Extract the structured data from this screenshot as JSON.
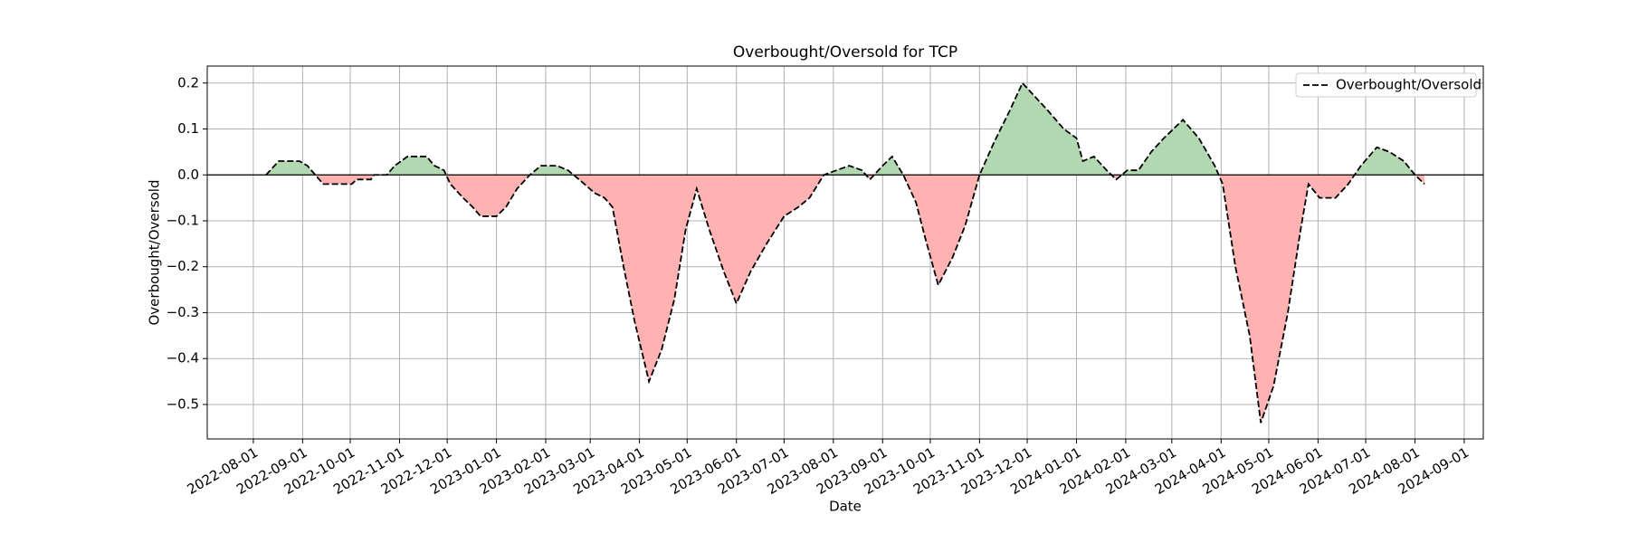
{
  "chart_data": {
    "type": "line",
    "title": "Overbought/Oversold for TCP",
    "xlabel": "Date",
    "ylabel": "Overbought/Oversold",
    "x": [
      "2022-08-09",
      "2022-08-17",
      "2022-08-30",
      "2022-09-04",
      "2022-09-09",
      "2022-09-14",
      "2022-10-02",
      "2022-10-05",
      "2022-10-14",
      "2022-10-16",
      "2022-10-24",
      "2022-10-29",
      "2022-11-06",
      "2022-11-18",
      "2022-11-23",
      "2022-11-29",
      "2022-12-03",
      "2022-12-11",
      "2022-12-17",
      "2022-12-22",
      "2023-01-01",
      "2023-01-07",
      "2023-01-14",
      "2023-01-22",
      "2023-01-29",
      "2023-02-08",
      "2023-02-15",
      "2023-02-22",
      "2023-03-04",
      "2023-03-10",
      "2023-03-15",
      "2023-03-22",
      "2023-03-29",
      "2023-04-07",
      "2023-04-15",
      "2023-04-23",
      "2023-04-30",
      "2023-05-07",
      "2023-05-15",
      "2023-05-24",
      "2023-06-01",
      "2023-06-10",
      "2023-06-20",
      "2023-07-01",
      "2023-07-10",
      "2023-07-17",
      "2023-07-26",
      "2023-08-03",
      "2023-08-11",
      "2023-08-19",
      "2023-08-24",
      "2023-09-01",
      "2023-09-07",
      "2023-09-14",
      "2023-09-22",
      "2023-09-28",
      "2023-10-06",
      "2023-10-15",
      "2023-10-23",
      "2023-11-01",
      "2023-11-10",
      "2023-11-20",
      "2023-11-28",
      "2023-12-06",
      "2023-12-14",
      "2023-12-24",
      "2024-01-01",
      "2024-01-05",
      "2024-01-12",
      "2024-01-20",
      "2024-01-26",
      "2024-02-02",
      "2024-02-09",
      "2024-02-17",
      "2024-02-25",
      "2024-03-08",
      "2024-03-18",
      "2024-03-28",
      "2024-04-02",
      "2024-04-10",
      "2024-04-19",
      "2024-04-26",
      "2024-05-04",
      "2024-05-13",
      "2024-05-21",
      "2024-05-26",
      "2024-06-02",
      "2024-06-12",
      "2024-06-20",
      "2024-06-28",
      "2024-07-08",
      "2024-07-16",
      "2024-07-25",
      "2024-08-01",
      "2024-08-07"
    ],
    "series": [
      {
        "name": "Overbought/Oversold",
        "color": "#000000",
        "values": [
          0.0,
          0.03,
          0.03,
          0.02,
          0.0,
          -0.02,
          -0.02,
          -0.01,
          -0.01,
          0.0,
          0.0,
          0.02,
          0.04,
          0.04,
          0.02,
          0.01,
          -0.02,
          -0.05,
          -0.07,
          -0.09,
          -0.09,
          -0.07,
          -0.03,
          0.0,
          0.02,
          0.02,
          0.01,
          -0.01,
          -0.04,
          -0.05,
          -0.07,
          -0.2,
          -0.32,
          -0.45,
          -0.38,
          -0.27,
          -0.12,
          -0.03,
          -0.12,
          -0.21,
          -0.28,
          -0.21,
          -0.15,
          -0.09,
          -0.07,
          -0.05,
          0.0,
          0.01,
          0.02,
          0.01,
          -0.01,
          0.02,
          0.04,
          0.0,
          -0.06,
          -0.14,
          -0.24,
          -0.18,
          -0.11,
          0.0,
          0.07,
          0.14,
          0.2,
          0.17,
          0.14,
          0.1,
          0.08,
          0.03,
          0.04,
          0.01,
          -0.01,
          0.01,
          0.01,
          0.05,
          0.08,
          0.12,
          0.08,
          0.02,
          -0.02,
          -0.2,
          -0.35,
          -0.54,
          -0.46,
          -0.3,
          -0.12,
          -0.02,
          -0.05,
          -0.05,
          -0.02,
          0.02,
          0.06,
          0.05,
          0.03,
          0.0,
          -0.02
        ]
      }
    ],
    "positive_fill": "#b2d8b2",
    "negative_fill": "#ffb2b2",
    "xlim": [
      "2022-07-03",
      "2024-09-13"
    ],
    "xticks": [
      "2022-08-01",
      "2022-09-01",
      "2022-10-01",
      "2022-11-01",
      "2022-12-01",
      "2023-01-01",
      "2023-02-01",
      "2023-03-01",
      "2023-04-01",
      "2023-05-01",
      "2023-06-01",
      "2023-07-01",
      "2023-08-01",
      "2023-09-01",
      "2023-10-01",
      "2023-11-01",
      "2023-12-01",
      "2024-01-01",
      "2024-02-01",
      "2024-03-01",
      "2024-04-01",
      "2024-05-01",
      "2024-06-01",
      "2024-07-01",
      "2024-08-01",
      "2024-09-01"
    ],
    "ylim": [
      -0.575,
      0.237
    ],
    "yticks": [
      {
        "value": -0.5,
        "label": "−0.5"
      },
      {
        "value": -0.4,
        "label": "−0.4"
      },
      {
        "value": -0.3,
        "label": "−0.3"
      },
      {
        "value": -0.2,
        "label": "−0.2"
      },
      {
        "value": -0.1,
        "label": "−0.1"
      },
      {
        "value": 0,
        "label": "0.0"
      },
      {
        "value": 0.1,
        "label": "0.1"
      },
      {
        "value": 0.2,
        "label": "0.2"
      }
    ],
    "grid": true,
    "legend": "upper right"
  }
}
